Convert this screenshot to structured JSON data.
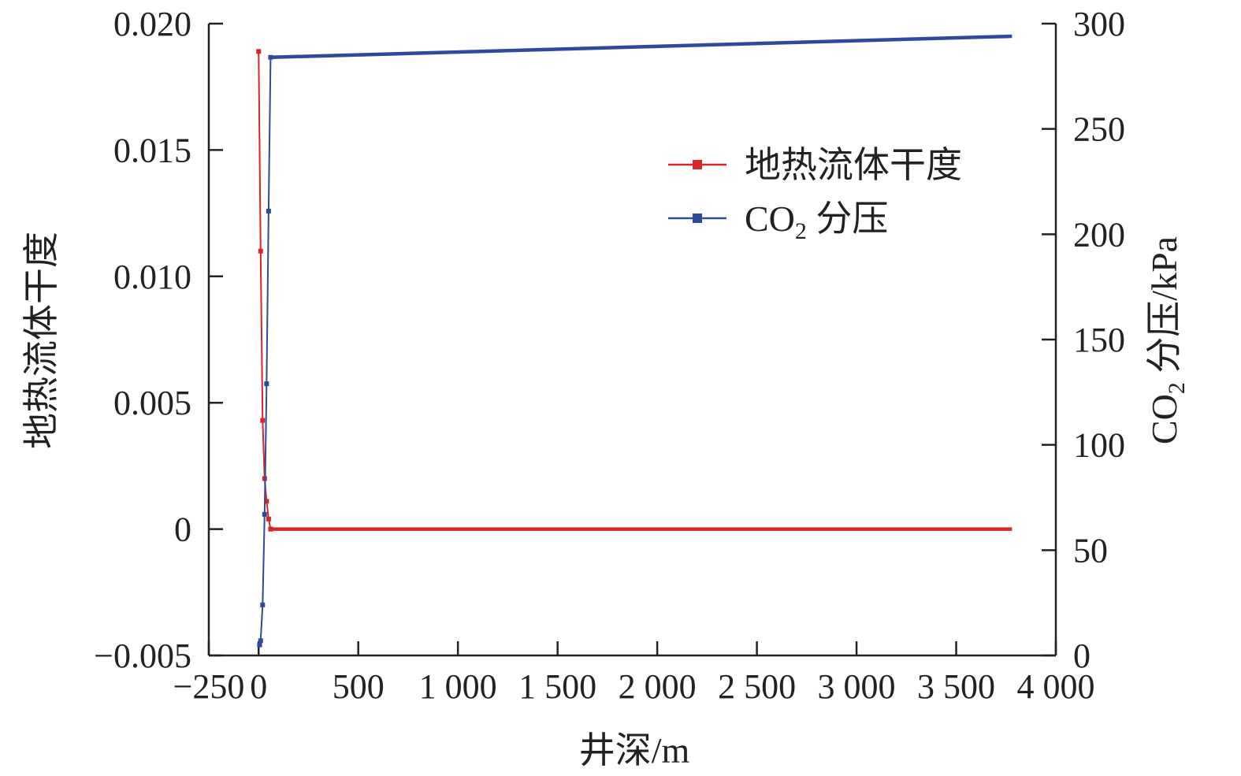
{
  "chart_data": {
    "type": "line",
    "xlabel": "井深/m",
    "ylabel_left": "地热流体干度",
    "ylabel_right": "CO2 分压/kPa",
    "xlim": [
      -250,
      4000
    ],
    "ylim_left": [
      -0.005,
      0.02
    ],
    "ylim_right": [
      0,
      300
    ],
    "x_ticks": [
      -250,
      0,
      500,
      1000,
      1500,
      2000,
      2500,
      3000,
      3500,
      4000
    ],
    "x_tick_labels": [
      "−250",
      "0",
      "500",
      "1 000",
      "1 500",
      "2 000",
      "2 500",
      "3 000",
      "3 500",
      "4 000"
    ],
    "y_left_ticks": [
      -0.005,
      0,
      0.005,
      0.01,
      0.015,
      0.02
    ],
    "y_left_tick_labels": [
      "−0.005",
      "0",
      "0.005",
      "0.010",
      "0.015",
      "0.020"
    ],
    "y_right_ticks": [
      0,
      50,
      100,
      150,
      200,
      250,
      300
    ],
    "y_right_tick_labels": [
      "0",
      "50",
      "100",
      "150",
      "200",
      "250",
      "300"
    ],
    "grid": false,
    "legend_position": "upper-right",
    "series": [
      {
        "name": "地热流体干度",
        "axis": "left",
        "color": "#d62728",
        "marker": "square",
        "x": [
          0,
          10,
          20,
          30,
          40,
          50,
          60,
          3780
        ],
        "y": [
          0.0189,
          0.011,
          0.0043,
          0.002,
          0.0011,
          0.0004,
          0.0,
          0.0
        ]
      },
      {
        "name": "CO2 分压",
        "axis": "right",
        "color": "#2e4a9c",
        "marker": "square",
        "x": [
          5,
          10,
          20,
          30,
          40,
          50,
          60,
          3780
        ],
        "y": [
          5,
          7,
          24,
          67,
          129,
          211,
          284,
          294
        ]
      }
    ],
    "legend": [
      {
        "label": "地热流体干度",
        "color": "#d62728"
      },
      {
        "label_main": "CO",
        "label_sub": "2",
        "label_rest": " 分压",
        "color": "#2e4a9c"
      }
    ],
    "right_axis_title_parts": {
      "main": "CO",
      "sub": "2",
      "rest": " 分压/kPa"
    }
  }
}
